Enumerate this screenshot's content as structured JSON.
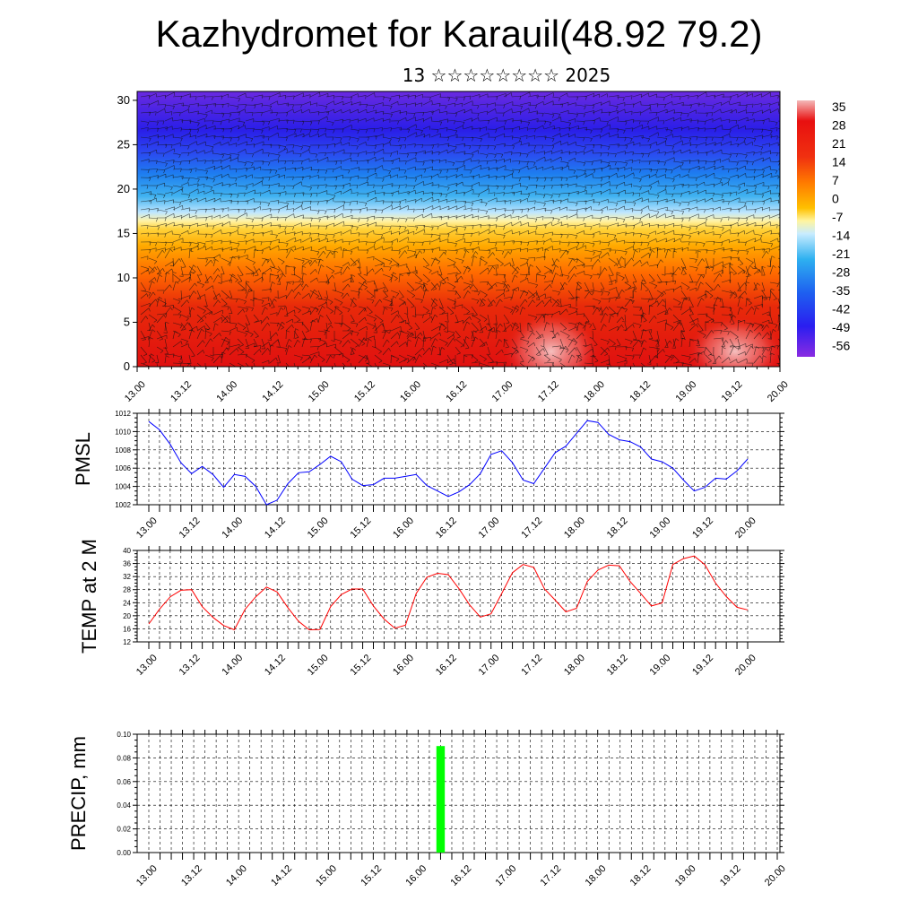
{
  "header": {
    "title": "Kazhydromet for Karauil(48.92 79.2)",
    "subtitle": "13 ☆☆☆☆☆☆☆☆ 2025"
  },
  "colors": {
    "pmsl_line": "#0000ff",
    "temp_line": "#ff0000",
    "precip_bar": "#00ff00",
    "colorbar_stops": [
      "#f0a0a0",
      "#e00000",
      "#ff6a00",
      "#ffc800",
      "#fffaa0",
      "#7fd0ff",
      "#1e90ff",
      "#2040ff",
      "#4020ff",
      "#8a2be2"
    ]
  },
  "chart_data": [
    {
      "type": "heatmap",
      "title": "",
      "xlabel": "",
      "ylabel": "",
      "ylim": [
        0,
        31
      ],
      "y_ticks": [
        0,
        5,
        10,
        15,
        20,
        25,
        30
      ],
      "x_tick_labels": [
        "13.00",
        "13.12",
        "14.00",
        "14.12",
        "15.00",
        "15.12",
        "16.00",
        "16.12",
        "17.00",
        "17.12",
        "18.00",
        "18.12",
        "19.00",
        "19.12",
        "20.00"
      ],
      "colorbar_labels": [
        "35",
        "28",
        "21",
        "14",
        "7",
        "0",
        "-7",
        "-14",
        "-21",
        "-28",
        "-35",
        "-42",
        "-49",
        "-56"
      ],
      "overlay": "wind barbs"
    },
    {
      "type": "line",
      "ylabel": "PMSL",
      "ylim": [
        1002,
        1012
      ],
      "y_ticks": [
        1002,
        1004,
        1006,
        1008,
        1010,
        1012
      ],
      "x_tick_labels": [
        "13.00",
        "13.12",
        "14.00",
        "14.12",
        "15.00",
        "15.12",
        "16.00",
        "16.12",
        "17.00",
        "17.12",
        "18.00",
        "18.12",
        "19.00",
        "19.12",
        "20.00"
      ],
      "grid": true,
      "series": [
        {
          "values": [
            1011.1,
            1010.2,
            1008.6,
            1006.6,
            1005.4,
            1006.2,
            1005.3,
            1003.9,
            1005.3,
            1005.1,
            1004.0,
            1002.0,
            1002.5,
            1004.3,
            1005.5,
            1005.6,
            1006.4,
            1007.3,
            1006.7,
            1004.8,
            1004.1,
            1004.2,
            1004.9,
            1004.9,
            1005.1,
            1005.3,
            1004.1,
            1003.5,
            1002.9,
            1003.4,
            1004.2,
            1005.4,
            1007.5,
            1007.9,
            1006.6,
            1004.7,
            1004.3,
            1006.0,
            1007.7,
            1008.4,
            1009.8,
            1011.2,
            1011.0,
            1009.7,
            1009.1,
            1008.9,
            1008.3,
            1007.0,
            1006.7,
            1006.0,
            1004.7,
            1003.5,
            1003.9,
            1004.9,
            1004.8,
            1005.7,
            1007.0
          ]
        }
      ]
    },
    {
      "type": "line",
      "ylabel": "TEMP at 2 M",
      "ylim": [
        12,
        40
      ],
      "y_ticks": [
        12,
        16,
        20,
        24,
        28,
        32,
        36,
        40
      ],
      "x_tick_labels": [
        "13.00",
        "13.12",
        "14.00",
        "14.12",
        "15.00",
        "15.12",
        "16.00",
        "16.12",
        "17.00",
        "17.12",
        "18.00",
        "18.12",
        "19.00",
        "19.12",
        "20.00"
      ],
      "grid": true,
      "series": [
        {
          "values": [
            17.5,
            22,
            25.8,
            27.8,
            28,
            22.8,
            19.5,
            17,
            15.7,
            22,
            25.8,
            28.8,
            27.3,
            22.5,
            18.3,
            15.7,
            15.8,
            22.8,
            26.5,
            28.2,
            28.2,
            23,
            19,
            16.2,
            17.1,
            26.8,
            31.8,
            33,
            32.6,
            28.3,
            23.3,
            19.6,
            20.6,
            26.8,
            33.2,
            35.7,
            34.8,
            28.2,
            24.8,
            21.2,
            22.3,
            30.5,
            34,
            35.5,
            35.3,
            30.5,
            26.8,
            23,
            23.9,
            35.7,
            37.5,
            38.3,
            35.6,
            30,
            25.9,
            22.6,
            21.8
          ]
        }
      ]
    },
    {
      "type": "bar",
      "ylabel": "PRECIP, mm",
      "ylim": [
        0,
        0.1
      ],
      "y_ticks": [
        "0.00",
        "0.02",
        "0.04",
        "0.06",
        "0.08",
        "0.10"
      ],
      "x_tick_labels": [
        "13.00",
        "13.12",
        "14.00",
        "14.12",
        "15.00",
        "15.12",
        "16.00",
        "16.12",
        "17.00",
        "17.12",
        "18.00",
        "18.12",
        "19.00",
        "19.12",
        "20.00"
      ],
      "grid": true,
      "bars": [
        {
          "x_step": 26,
          "value": 0.09
        }
      ]
    }
  ]
}
